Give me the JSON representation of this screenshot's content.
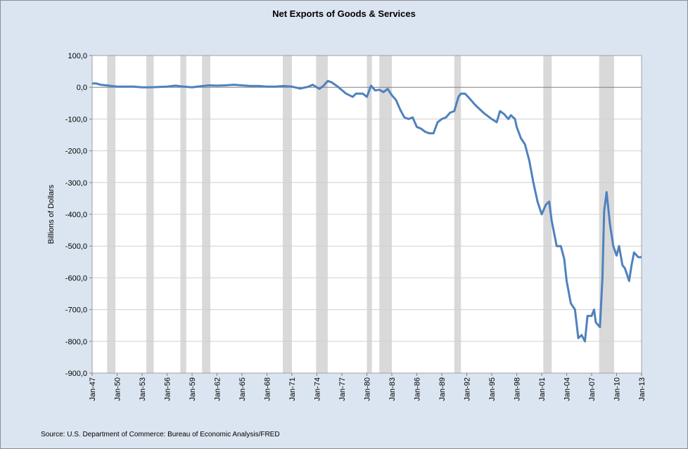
{
  "chart_data": {
    "type": "line",
    "title": "Net Exports of Goods & Services",
    "y_label": "Billions of Dollars",
    "source": "Source: U.S. Department of Commerce: Bureau of Economic Analysis/FRED",
    "xlim": [
      1947,
      2013
    ],
    "xticks": [
      {
        "value": 1947,
        "label": "Jan-47"
      },
      {
        "value": 1950,
        "label": "Jan-50"
      },
      {
        "value": 1953,
        "label": "Jan-53"
      },
      {
        "value": 1956,
        "label": "Jan-56"
      },
      {
        "value": 1959,
        "label": "Jan-59"
      },
      {
        "value": 1962,
        "label": "Jan-62"
      },
      {
        "value": 1965,
        "label": "Jan-65"
      },
      {
        "value": 1968,
        "label": "Jan-68"
      },
      {
        "value": 1971,
        "label": "Jan-71"
      },
      {
        "value": 1974,
        "label": "Jan-74"
      },
      {
        "value": 1977,
        "label": "Jan-77"
      },
      {
        "value": 1980,
        "label": "Jan-80"
      },
      {
        "value": 1983,
        "label": "Jan-83"
      },
      {
        "value": 1986,
        "label": "Jan-86"
      },
      {
        "value": 1989,
        "label": "Jan-89"
      },
      {
        "value": 1992,
        "label": "Jan-92"
      },
      {
        "value": 1995,
        "label": "Jan-95"
      },
      {
        "value": 1998,
        "label": "Jan-98"
      },
      {
        "value": 2001,
        "label": "Jan-01"
      },
      {
        "value": 2004,
        "label": "Jan-04"
      },
      {
        "value": 2007,
        "label": "Jan-07"
      },
      {
        "value": 2010,
        "label": "Jan-10"
      },
      {
        "value": 2013,
        "label": "Jan-13"
      }
    ],
    "ylim": [
      -900,
      100
    ],
    "yticks": [
      {
        "value": 100,
        "label": "100,0"
      },
      {
        "value": 0,
        "label": "0,0"
      },
      {
        "value": -100,
        "label": "-100,0"
      },
      {
        "value": -200,
        "label": "-200,0"
      },
      {
        "value": -300,
        "label": "-300,0"
      },
      {
        "value": -400,
        "label": "-400,0"
      },
      {
        "value": -500,
        "label": "-500,0"
      },
      {
        "value": -600,
        "label": "-600,0"
      },
      {
        "value": -700,
        "label": "-700,0"
      },
      {
        "value": -800,
        "label": "-800,0"
      },
      {
        "value": -900,
        "label": "-900,0"
      }
    ],
    "grid": true,
    "recession_color": "#d9d9d9",
    "recessions": [
      [
        1948.8,
        1949.8
      ],
      [
        1953.5,
        1954.4
      ],
      [
        1957.6,
        1958.3
      ],
      [
        1960.2,
        1961.2
      ],
      [
        1969.9,
        1971.0
      ],
      [
        1973.9,
        1975.3
      ],
      [
        1980.0,
        1980.6
      ],
      [
        1981.5,
        1983.0
      ],
      [
        1990.5,
        1991.3
      ],
      [
        2001.2,
        2002.2
      ],
      [
        2007.9,
        2009.7
      ]
    ],
    "series": [
      {
        "name": "Net Exports",
        "color": "#4f81bd",
        "x": [
          1947,
          1947.5,
          1948,
          1949,
          1950,
          1951,
          1952,
          1953,
          1954,
          1955,
          1956,
          1957,
          1958,
          1959,
          1960,
          1961,
          1962,
          1963,
          1964,
          1965,
          1966,
          1967,
          1968,
          1969,
          1970,
          1971,
          1972,
          1973,
          1973.5,
          1974.3,
          1974.8,
          1975.3,
          1975.8,
          1976.5,
          1977.5,
          1978.3,
          1978.7,
          1979.5,
          1980,
          1980.5,
          1981,
          1981.5,
          1982,
          1982.5,
          1983,
          1983.5,
          1984,
          1984.5,
          1985,
          1985.5,
          1986,
          1986.5,
          1987,
          1987.5,
          1988,
          1988.5,
          1989,
          1989.5,
          1990,
          1990.5,
          1991,
          1991.3,
          1991.8,
          1992.5,
          1993,
          1994,
          1995,
          1995.6,
          1996,
          1996.5,
          1997,
          1997.3,
          1997.8,
          1998,
          1998.5,
          1999,
          1999.5,
          2000,
          2000.5,
          2001,
          2001.5,
          2001.9,
          2002.2,
          2002.8,
          2003.3,
          2003.7,
          2004,
          2004.5,
          2005,
          2005.4,
          2005.8,
          2006.2,
          2006.5,
          2007,
          2007.3,
          2007.5,
          2008,
          2008.3,
          2008.5,
          2008.8,
          2009.2,
          2009.6,
          2010,
          2010.3,
          2010.7,
          2011,
          2011.5,
          2011.8,
          2012.1,
          2012.6,
          2013
        ],
        "values": [
          12,
          12,
          8,
          5,
          2,
          2,
          2,
          0,
          0,
          1,
          2,
          5,
          2,
          0,
          3,
          6,
          5,
          6,
          8,
          6,
          4,
          4,
          2,
          2,
          4,
          2,
          -4,
          2,
          8,
          -5,
          5,
          20,
          15,
          2,
          -20,
          -30,
          -20,
          -20,
          -30,
          5,
          -10,
          -8,
          -15,
          -5,
          -25,
          -40,
          -70,
          -95,
          -100,
          -95,
          -125,
          -130,
          -140,
          -145,
          -145,
          -110,
          -100,
          -95,
          -80,
          -75,
          -30,
          -20,
          -20,
          -40,
          -55,
          -80,
          -100,
          -110,
          -75,
          -85,
          -100,
          -88,
          -100,
          -125,
          -160,
          -180,
          -230,
          -300,
          -360,
          -400,
          -370,
          -360,
          -420,
          -500,
          -500,
          -540,
          -610,
          -680,
          -700,
          -790,
          -780,
          -800,
          -720,
          -720,
          -700,
          -740,
          -755,
          -600,
          -390,
          -330,
          -430,
          -500,
          -530,
          -500,
          -560,
          -570,
          -610,
          -560,
          -520,
          -535,
          -535
        ]
      }
    ]
  }
}
